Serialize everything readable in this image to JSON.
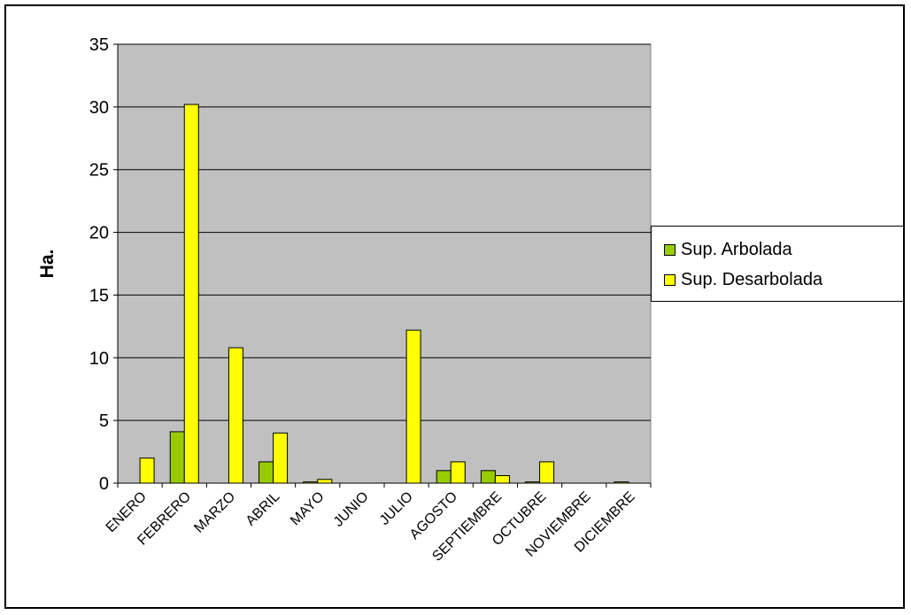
{
  "chart_data": {
    "type": "bar",
    "ylabel": "Ha.",
    "xlabel": "",
    "ylim": [
      0,
      35
    ],
    "yticks": [
      0,
      5,
      10,
      15,
      20,
      25,
      30,
      35
    ],
    "grid": true,
    "legend_position": "right",
    "plot_background": "#C0C0C0",
    "categories": [
      "ENERO",
      "FEBRERO",
      "MARZO",
      "ABRIL",
      "MAYO",
      "JUNIO",
      "JULIO",
      "AGOSTO",
      "SEPTIEMBRE",
      "OCTUBRE",
      "NOVIEMBRE",
      "DICIEMBRE"
    ],
    "series": [
      {
        "name": "Sup. Arbolada",
        "color": "#99CC00",
        "values": [
          0,
          4.1,
          0,
          1.7,
          0.1,
          0,
          0,
          1.0,
          1.0,
          0.1,
          0,
          0.1
        ]
      },
      {
        "name": "Sup. Desarbolada",
        "color": "#FFFF00",
        "values": [
          2.0,
          30.2,
          10.8,
          4.0,
          0.3,
          0,
          12.2,
          1.7,
          0.6,
          1.7,
          0,
          0
        ]
      }
    ]
  }
}
